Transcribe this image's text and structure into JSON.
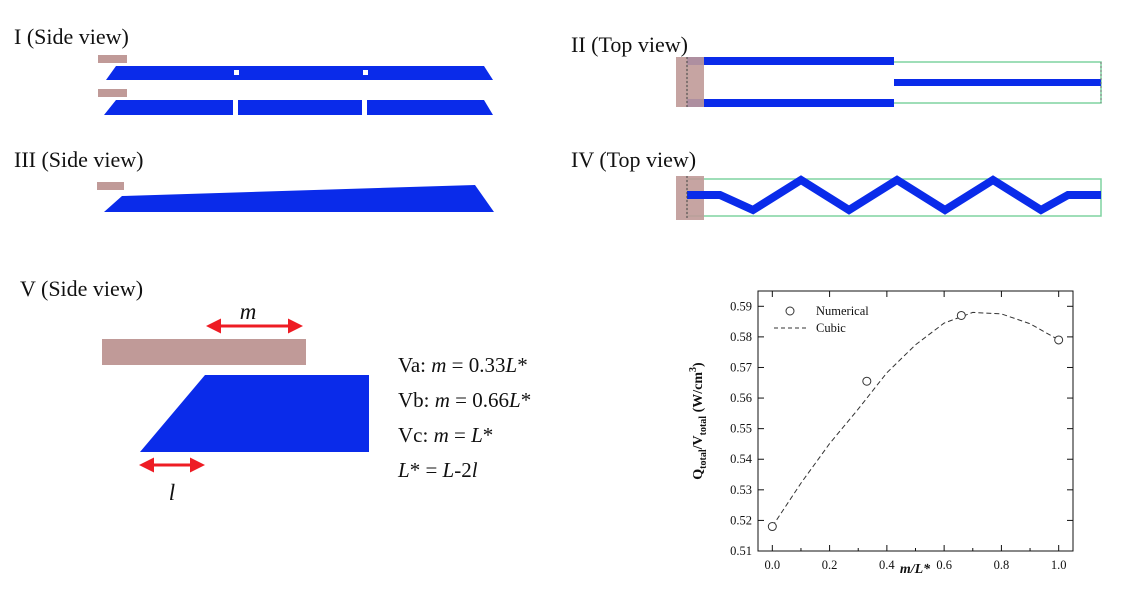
{
  "panels": {
    "p1": {
      "label": "I (Side view)"
    },
    "p2": {
      "label": "II (Top view)"
    },
    "p3": {
      "label": "III (Side view)"
    },
    "p4": {
      "label": "IV (Top view)"
    },
    "p5": {
      "label": "V (Side view)"
    }
  },
  "panel5": {
    "m_label": "m",
    "l_label": "l",
    "equations": [
      {
        "prefix": "Va: ",
        "var": "m",
        "mid": " = 0.33",
        "sym": "L",
        "suffix": "*"
      },
      {
        "prefix": "Vb: ",
        "var": "m",
        "mid": " = 0.66",
        "sym": "L",
        "suffix": "*"
      },
      {
        "prefix": "Vc: ",
        "var": "m",
        "mid": " = ",
        "sym": "L",
        "suffix": "*"
      },
      {
        "prefix": "",
        "var": "L",
        "mid": "* = ",
        "sym": "L",
        "suffix": "-2",
        "tail": "l"
      }
    ]
  },
  "colors": {
    "blue": "#0a2bea",
    "electrode": "#c09a98",
    "arrow": "#ee1c24",
    "green": "#7fd3a0"
  },
  "chart_data": {
    "type": "scatter",
    "xlabel": "m/L*",
    "ylabel": "Q_total/V_total (W/cm^3)",
    "ylabel_parts": {
      "q": "Q",
      "q_sub": "total",
      "slash": "/V",
      "v_sub": "total",
      "unit": " (W/cm",
      "sup": "3",
      "close": ")"
    },
    "xlim": [
      -0.05,
      1.05
    ],
    "ylim": [
      0.51,
      0.595
    ],
    "xticks": [
      0.0,
      0.2,
      0.4,
      0.6,
      0.8,
      1.0
    ],
    "xtick_labels": [
      "0.0",
      "0.2",
      "0.4",
      "0.6",
      "0.8",
      "1.0"
    ],
    "yticks": [
      0.51,
      0.52,
      0.53,
      0.54,
      0.55,
      0.56,
      0.57,
      0.58,
      0.59
    ],
    "ytick_labels": [
      "0.51",
      "0.52",
      "0.53",
      "0.54",
      "0.55",
      "0.56",
      "0.57",
      "0.58",
      "0.59"
    ],
    "legend_position": "top-left",
    "series": [
      {
        "name": "Numerical",
        "marker": "open-circle",
        "x": [
          0.0,
          0.33,
          0.66,
          1.0
        ],
        "y": [
          0.518,
          0.5655,
          0.587,
          0.579
        ]
      },
      {
        "name": "Cubic",
        "style": "dashed",
        "x": [
          0.0,
          0.1,
          0.2,
          0.3,
          0.4,
          0.5,
          0.6,
          0.7,
          0.8,
          0.9,
          1.0
        ],
        "y": [
          0.518,
          0.5322,
          0.5451,
          0.5564,
          0.5683,
          0.5774,
          0.5845,
          0.588,
          0.5875,
          0.5843,
          0.579
        ]
      }
    ]
  }
}
